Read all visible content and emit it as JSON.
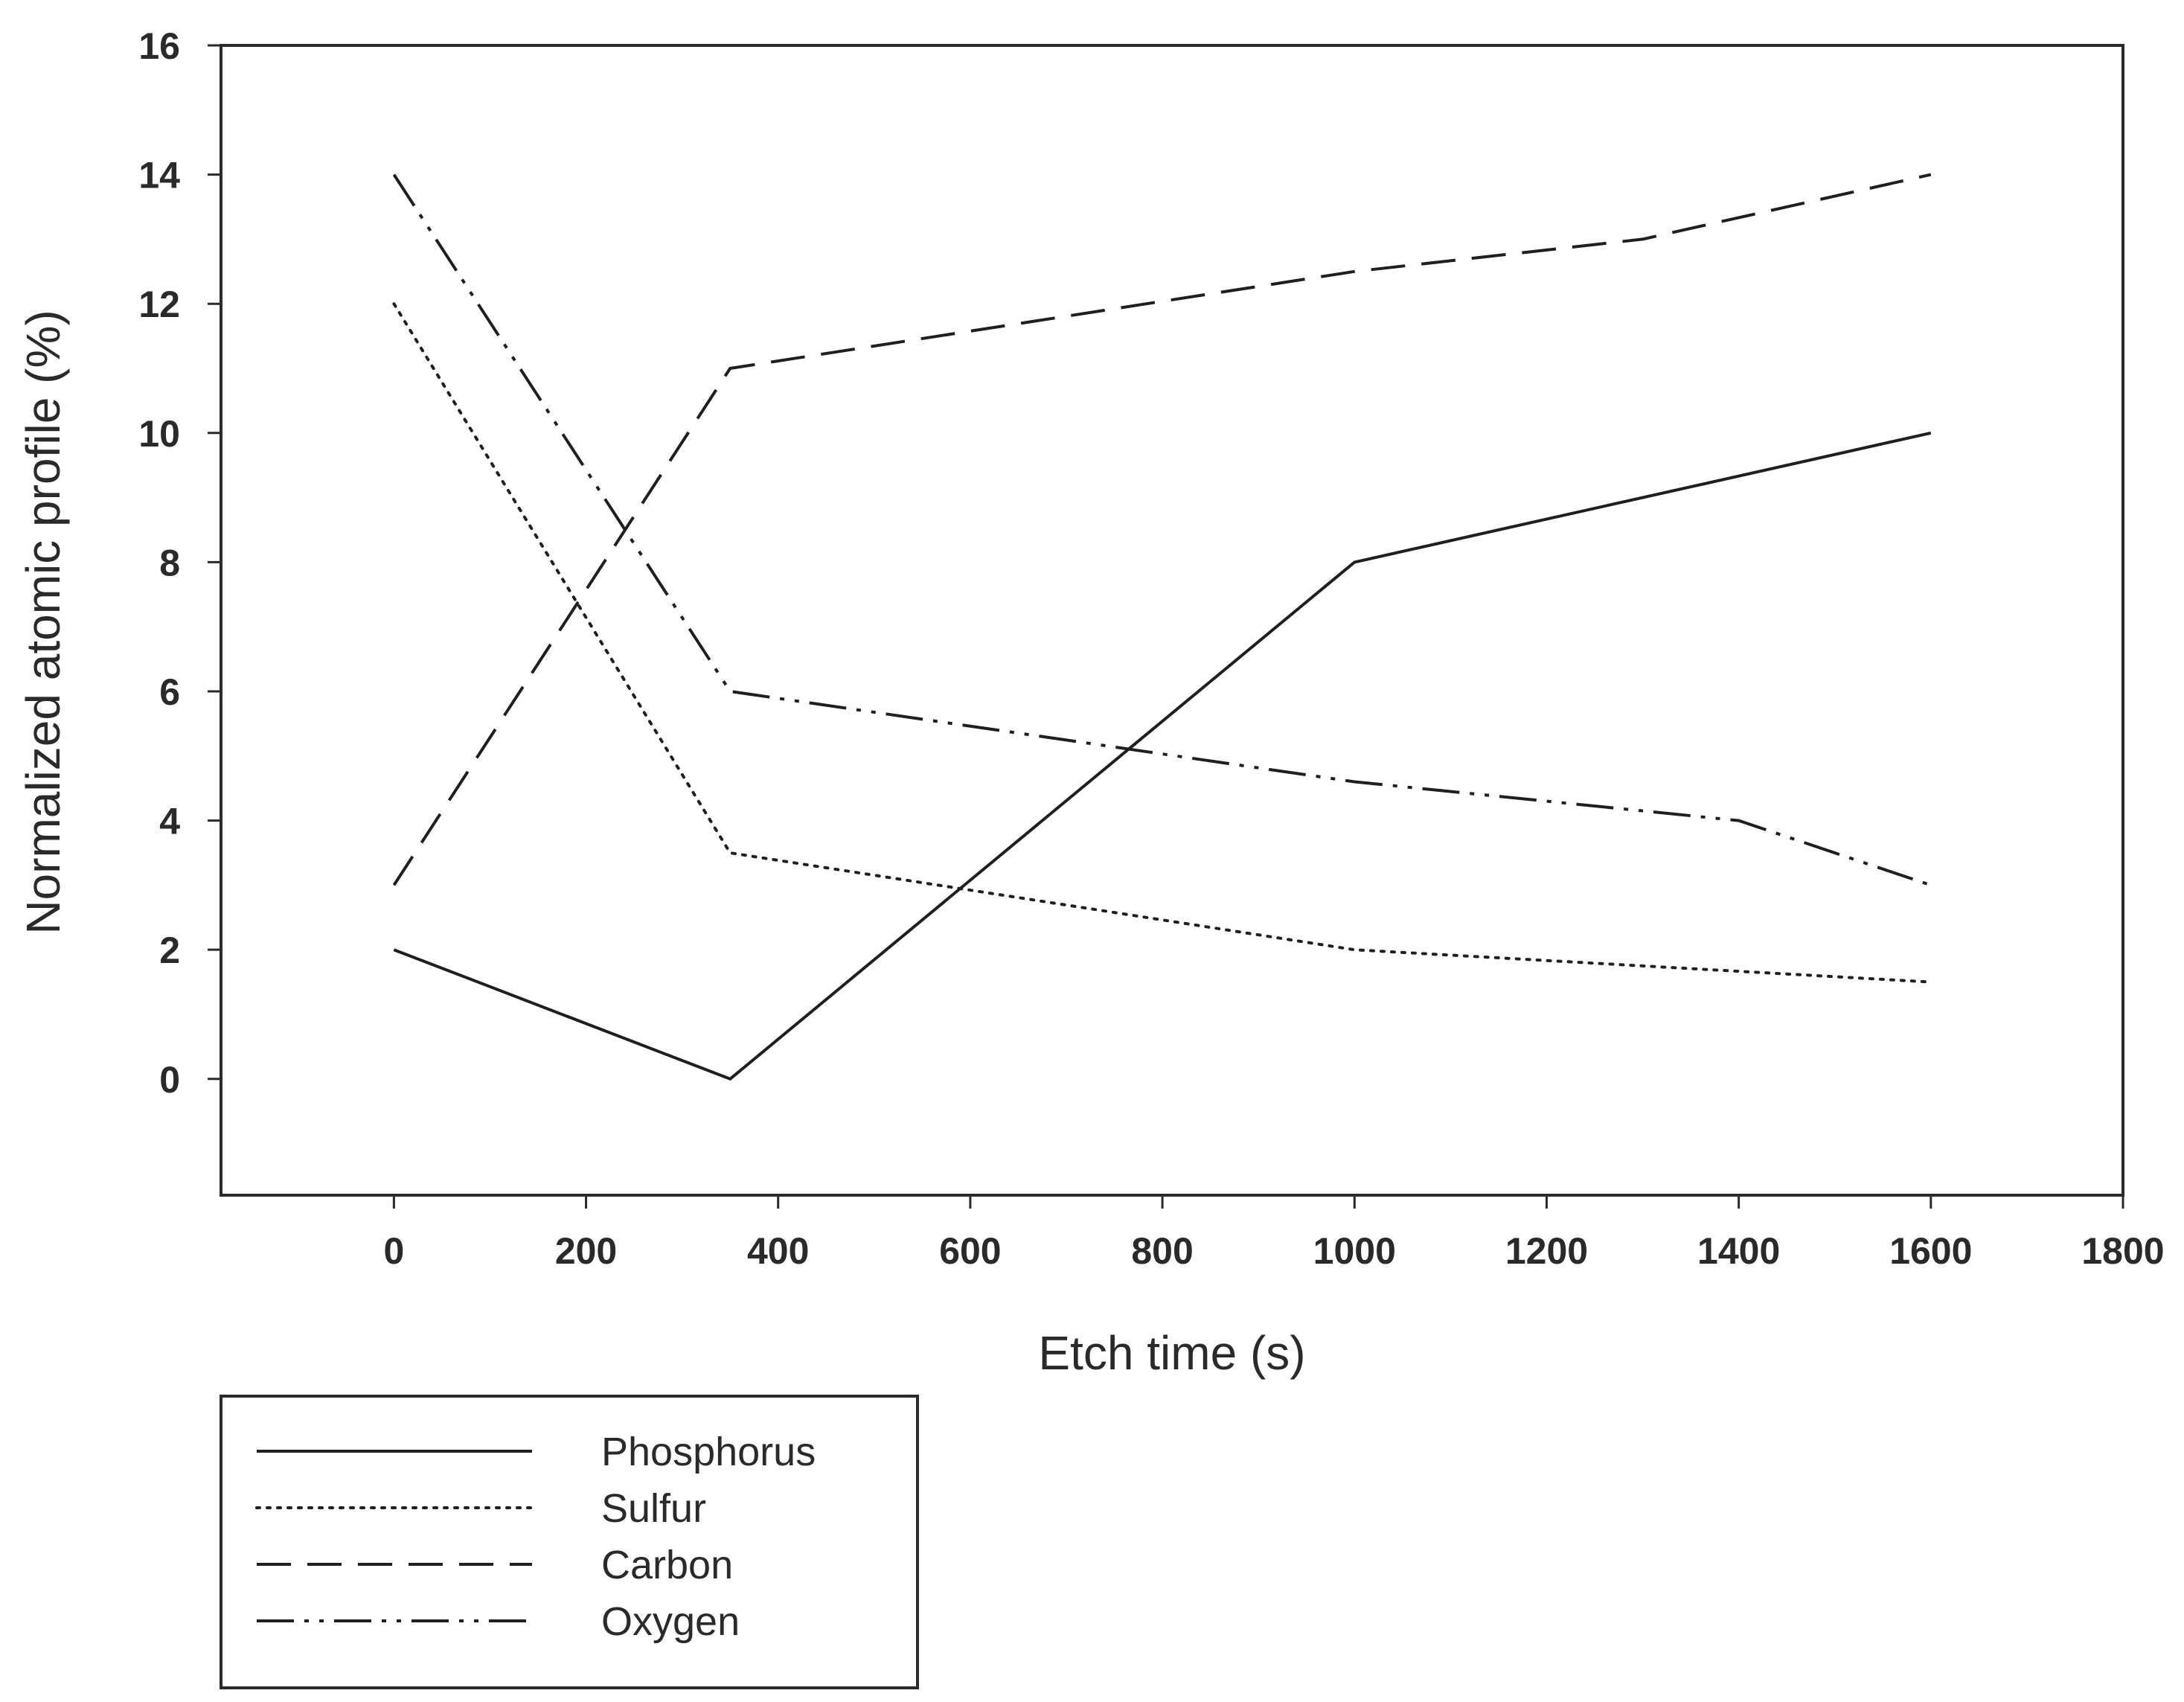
{
  "chart_data": {
    "type": "line",
    "title": "",
    "xlabel": "Etch time (s)",
    "ylabel": "Normalized atomic profile (%)",
    "xlim": [
      -180,
      1800
    ],
    "ylim": [
      -1.8,
      16
    ],
    "x_ticks": [
      0,
      200,
      400,
      600,
      800,
      1000,
      1200,
      1400,
      1600,
      1800
    ],
    "y_ticks": [
      0,
      2,
      4,
      6,
      8,
      10,
      12,
      14,
      16
    ],
    "grid": false,
    "legend_position": "bottom-left",
    "series": [
      {
        "name": "Phosphorus",
        "style": "solid",
        "x": [
          0,
          350,
          1000,
          1600
        ],
        "y": [
          2,
          0,
          8,
          10
        ]
      },
      {
        "name": "Sulfur",
        "style": "dotted",
        "x": [
          0,
          350,
          1000,
          1600
        ],
        "y": [
          12,
          3.5,
          2,
          1.5
        ]
      },
      {
        "name": "Carbon",
        "style": "dashed",
        "x": [
          0,
          350,
          1000,
          1300,
          1600
        ],
        "y": [
          3,
          11,
          12.5,
          13,
          14
        ]
      },
      {
        "name": "Oxygen",
        "style": "dash-dot-dot",
        "x": [
          0,
          350,
          1000,
          1400,
          1600
        ],
        "y": [
          14,
          6,
          4.6,
          4,
          3
        ]
      }
    ],
    "colors": {
      "line": "#1f1f1f",
      "axis": "#2a2a2a",
      "text": "#2a2a2a"
    }
  }
}
